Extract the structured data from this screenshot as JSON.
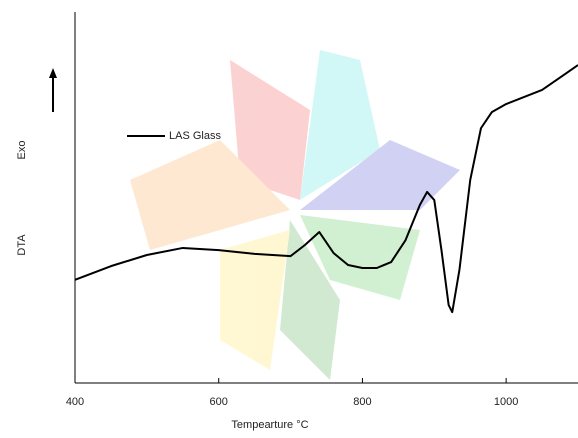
{
  "chart_data": {
    "type": "line",
    "xlabel": "Tempearture °C",
    "y_labels": [
      "DTA",
      "Exo"
    ],
    "x": [
      400,
      450,
      500,
      550,
      600,
      650,
      700,
      720,
      740,
      760,
      780,
      800,
      820,
      840,
      860,
      880,
      890,
      900,
      910,
      920,
      925,
      935,
      950,
      965,
      980,
      1000,
      1050,
      1080,
      1100
    ],
    "series": [
      {
        "name": "LAS Glass",
        "color": "#000000",
        "values": [
          27.8,
          31.5,
          34.5,
          36.4,
          35.8,
          34.8,
          34.2,
          37.2,
          40.7,
          35.0,
          31.8,
          31.0,
          31.0,
          32.6,
          38.5,
          48.0,
          51.5,
          49.3,
          35.8,
          21.0,
          19.1,
          30.5,
          54.7,
          68.7,
          73.0,
          75.2,
          79.0,
          83.0,
          85.7
        ]
      }
    ],
    "xlim": [
      400,
      1100
    ],
    "xticks": [
      400,
      600,
      800,
      1000
    ],
    "ylim": [
      0,
      100
    ],
    "grid": false
  }
}
